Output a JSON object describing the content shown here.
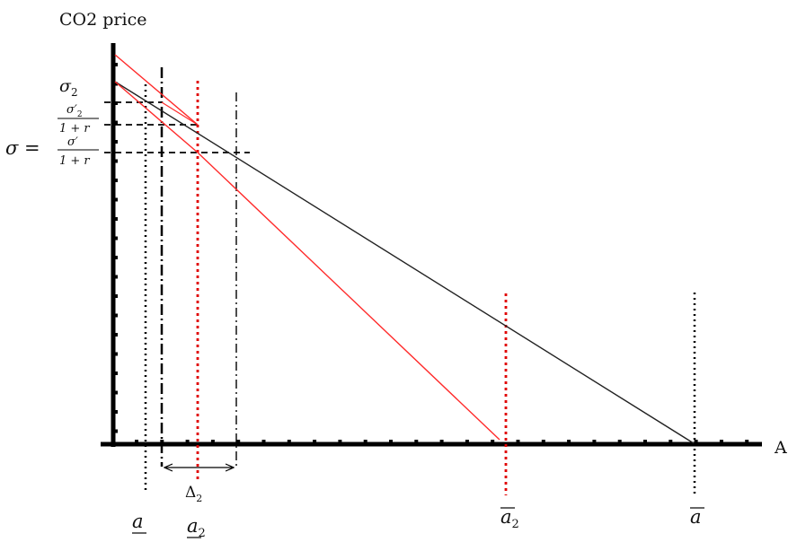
{
  "axes": {
    "y_label": "CO2 price",
    "x_label": "A"
  },
  "y_labels": {
    "sigma2": "σ",
    "sigma2_sub": "2",
    "frac_num": "σ′",
    "frac_num_sub": "2",
    "frac_den": "1 + r",
    "sigma_eq": "σ =",
    "frac2_num": "σ′",
    "frac2_den": "1 + r"
  },
  "x_labels": {
    "a_under": "a",
    "a2_under": "a",
    "a2_under_sub": "2",
    "a2_bar": "a",
    "a2_bar_sub": "2",
    "a_bar": "a",
    "delta": "Δ",
    "delta_sub": "2"
  },
  "colors": {
    "axis": "#000000",
    "black_line": "#222222",
    "red_line": "#ff2a2a",
    "red_dotted": "#e00000"
  }
}
